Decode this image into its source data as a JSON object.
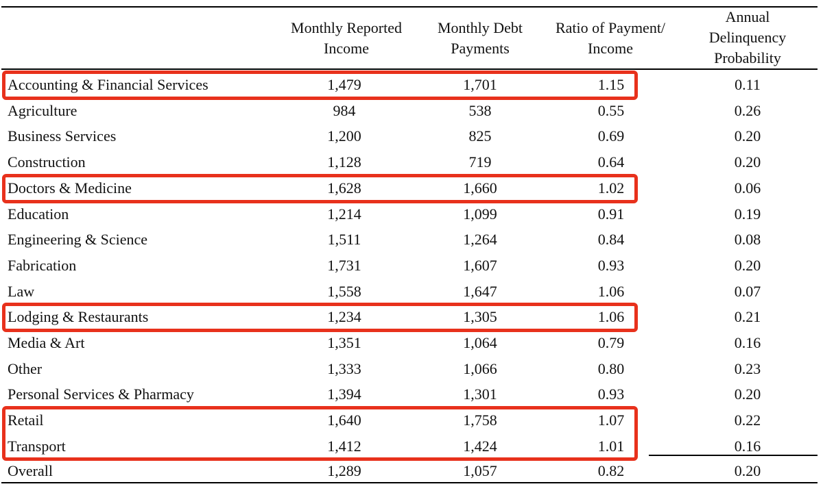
{
  "table": {
    "headers": {
      "income": [
        "Monthly Reported",
        "Income"
      ],
      "debt": [
        "Monthly Debt",
        "Payments"
      ],
      "ratio": [
        "Ratio of Payment/",
        "Income"
      ],
      "delinquency": [
        "Annual",
        "Delinquency",
        "Probability"
      ]
    },
    "rows": [
      {
        "label": "Accounting & Financial Services",
        "income": "1,479",
        "debt": "1,701",
        "ratio": "1.15",
        "delinquency": "0.11"
      },
      {
        "label": "Agriculture",
        "income": "984",
        "debt": "538",
        "ratio": "0.55",
        "delinquency": "0.26"
      },
      {
        "label": "Business Services",
        "income": "1,200",
        "debt": "825",
        "ratio": "0.69",
        "delinquency": "0.20"
      },
      {
        "label": "Construction",
        "income": "1,128",
        "debt": "719",
        "ratio": "0.64",
        "delinquency": "0.20"
      },
      {
        "label": "Doctors & Medicine",
        "income": "1,628",
        "debt": "1,660",
        "ratio": "1.02",
        "delinquency": "0.06"
      },
      {
        "label": "Education",
        "income": "1,214",
        "debt": "1,099",
        "ratio": "0.91",
        "delinquency": "0.19"
      },
      {
        "label": "Engineering & Science",
        "income": "1,511",
        "debt": "1,264",
        "ratio": "0.84",
        "delinquency": "0.08"
      },
      {
        "label": "Fabrication",
        "income": "1,731",
        "debt": "1,607",
        "ratio": "0.93",
        "delinquency": "0.20"
      },
      {
        "label": "Law",
        "income": "1,558",
        "debt": "1,647",
        "ratio": "1.06",
        "delinquency": "0.07"
      },
      {
        "label": "Lodging & Restaurants",
        "income": "1,234",
        "debt": "1,305",
        "ratio": "1.06",
        "delinquency": "0.21"
      },
      {
        "label": "Media & Art",
        "income": "1,351",
        "debt": "1,064",
        "ratio": "0.79",
        "delinquency": "0.16"
      },
      {
        "label": "Other",
        "income": "1,333",
        "debt": "1,066",
        "ratio": "0.80",
        "delinquency": "0.23"
      },
      {
        "label": "Personal Services & Pharmacy",
        "income": "1,394",
        "debt": "1,301",
        "ratio": "0.93",
        "delinquency": "0.20"
      },
      {
        "label": "Retail",
        "income": "1,640",
        "debt": "1,758",
        "ratio": "1.07",
        "delinquency": "0.22"
      },
      {
        "label": "Transport",
        "income": "1,412",
        "debt": "1,424",
        "ratio": "1.01",
        "delinquency": "0.16"
      }
    ],
    "total": {
      "label": "Overall",
      "income": "1,289",
      "debt": "1,057",
      "ratio": "0.82",
      "delinquency": "0.20"
    }
  },
  "highlight_color": "#e8311c"
}
